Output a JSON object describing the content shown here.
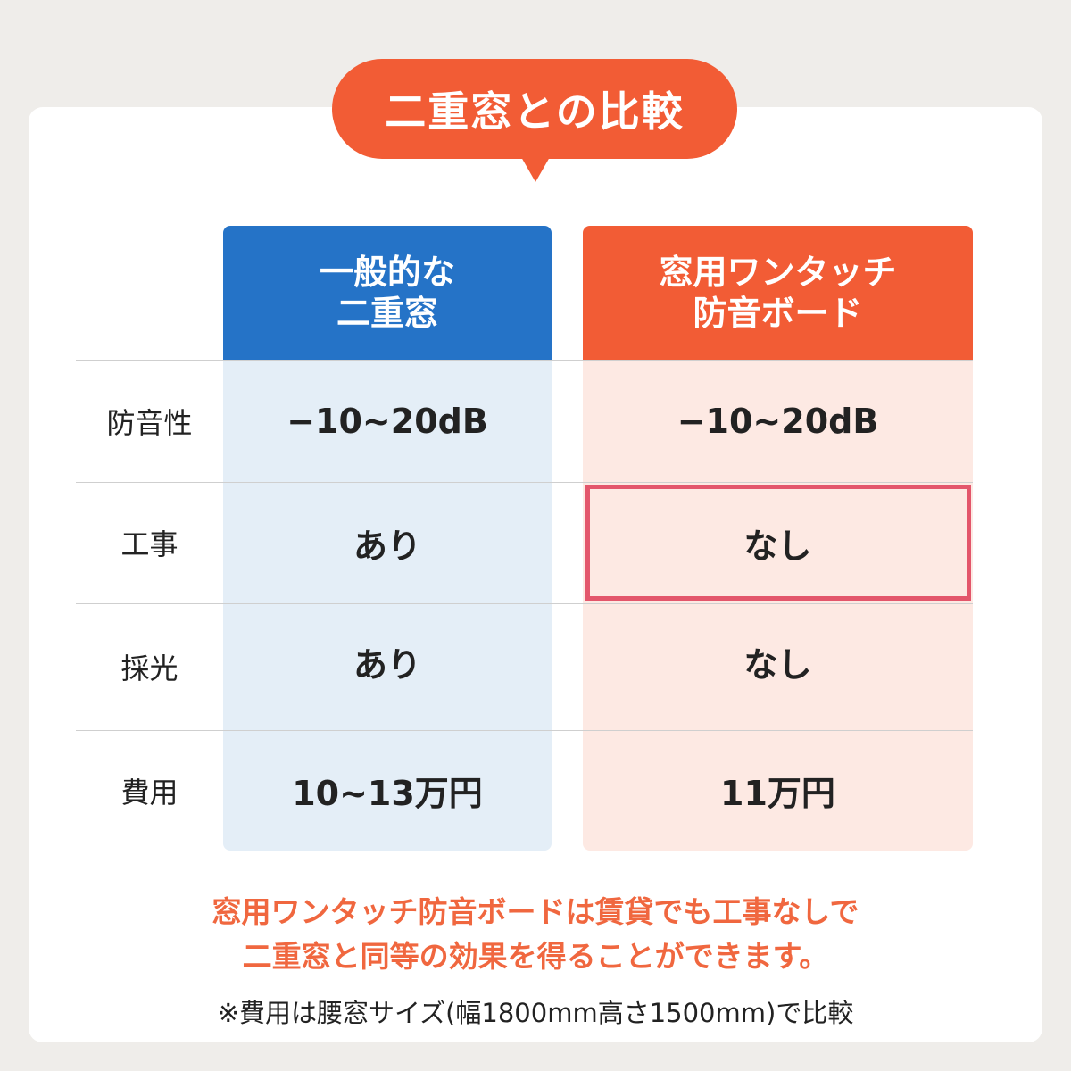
{
  "title": "二重窓との比較",
  "columns": [
    {
      "label_lines": [
        "一般的な",
        "二重窓"
      ],
      "color": "#2573c7"
    },
    {
      "label_lines": [
        "窓用ワンタッチ",
        "防音ボード"
      ],
      "color": "#f25c35"
    }
  ],
  "rows": [
    {
      "label": "防音性",
      "values": [
        "−10~20dB",
        "−10~20dB"
      ]
    },
    {
      "label": "工事",
      "values": [
        "あり",
        "なし"
      ],
      "highlight": "なし"
    },
    {
      "label": "採光",
      "values": [
        "あり",
        "なし"
      ]
    },
    {
      "label": "費用",
      "values": [
        "10~13万円",
        "11万円"
      ]
    }
  ],
  "note_lines": [
    "窓用ワンタッチ防音ボードは賃貸でも工事なしで",
    "二重窓と同等の効果を得ることができます。"
  ],
  "footnote": "※費用は腰窓サイズ(幅1800mm高さ1500mm)で比較"
}
